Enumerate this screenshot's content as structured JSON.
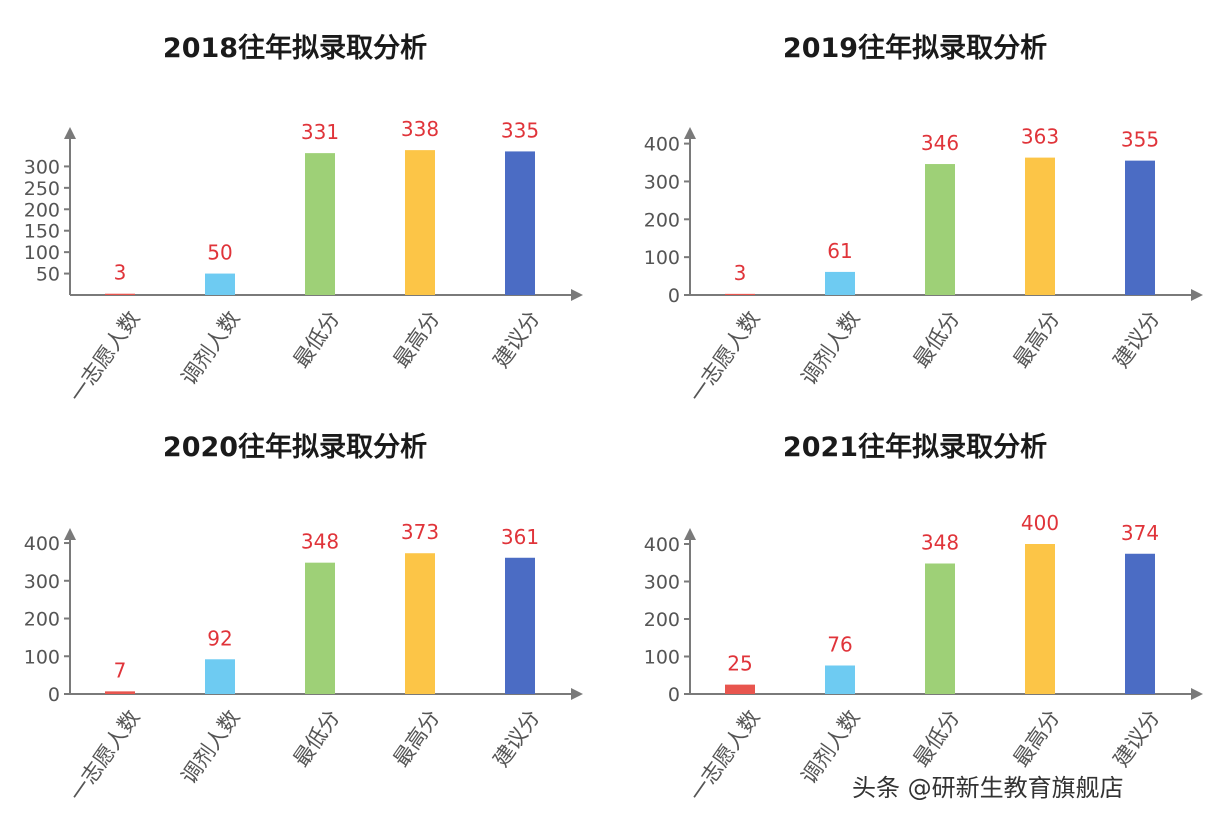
{
  "colors": [
    "#e8554e",
    "#6ecbf2",
    "#9ed077",
    "#fcc547",
    "#4b6cc4"
  ],
  "label_color": "#e0343a",
  "watermark": "头条 @研新生教育旗舰店",
  "chart_data": [
    {
      "type": "bar",
      "title": "2018往年拟录取分析",
      "categories": [
        "一志愿人数",
        "调剂人数",
        "最低分",
        "最高分",
        "建议分"
      ],
      "values": [
        3,
        50,
        331,
        338,
        335
      ],
      "ylim": [
        0,
        350
      ],
      "yticks": [
        50,
        100,
        150,
        200,
        250,
        300
      ],
      "grid": false,
      "legend": "none"
    },
    {
      "type": "bar",
      "title": "2019往年拟录取分析",
      "categories": [
        "一志愿人数",
        "调剂人数",
        "最低分",
        "最高分",
        "建议分"
      ],
      "values": [
        3,
        61,
        346,
        363,
        355
      ],
      "ylim": [
        0,
        420
      ],
      "yticks": [
        0,
        100,
        200,
        300,
        400
      ],
      "grid": false,
      "legend": "none"
    },
    {
      "type": "bar",
      "title": "2020往年拟录取分析",
      "categories": [
        "一志愿人数",
        "调剂人数",
        "最低分",
        "最高分",
        "建议分"
      ],
      "values": [
        7,
        92,
        348,
        373,
        361
      ],
      "ylim": [
        0,
        420
      ],
      "yticks": [
        0,
        100,
        200,
        300,
        400
      ],
      "grid": false,
      "legend": "none"
    },
    {
      "type": "bar",
      "title": "2021往年拟录取分析",
      "categories": [
        "一志愿人数",
        "调剂人数",
        "最低分",
        "最高分",
        "建议分"
      ],
      "values": [
        25,
        76,
        348,
        400,
        374
      ],
      "ylim": [
        0,
        420
      ],
      "yticks": [
        0,
        100,
        200,
        300,
        400
      ],
      "grid": false,
      "legend": "none"
    }
  ]
}
